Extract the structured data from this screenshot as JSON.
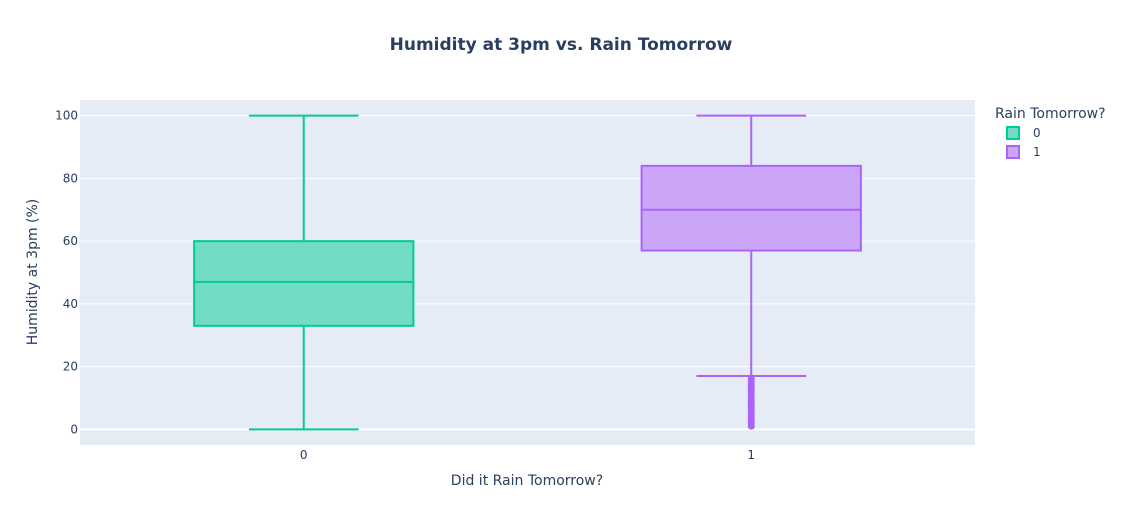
{
  "chart_data": {
    "type": "box",
    "title": "Humidity at 3pm vs. Rain Tomorrow",
    "xlabel": "Did it Rain Tomorrow?",
    "ylabel": "Humidity at 3pm (%)",
    "ylim": [
      -5,
      105
    ],
    "yticks": [
      0,
      20,
      40,
      60,
      80,
      100
    ],
    "categories": [
      "0",
      "1"
    ],
    "grid": true,
    "legend": {
      "title": "Rain Tomorrow?",
      "position": "top-right outside"
    },
    "series": [
      {
        "name": "0",
        "color": "#00cc96",
        "fill": "#72dbc4",
        "category": "0",
        "min": 0,
        "q1": 33,
        "median": 47,
        "q3": 60,
        "max": 100,
        "outliers": []
      },
      {
        "name": "1",
        "color": "#ab63fa",
        "fill": "#cba6f8",
        "category": "1",
        "min": 17,
        "q1": 57,
        "median": 70,
        "q3": 84,
        "max": 100,
        "outliers": [
          1,
          2,
          3,
          4,
          5,
          6,
          7,
          8,
          9,
          10,
          11,
          12,
          13,
          14,
          15,
          16
        ]
      }
    ]
  }
}
